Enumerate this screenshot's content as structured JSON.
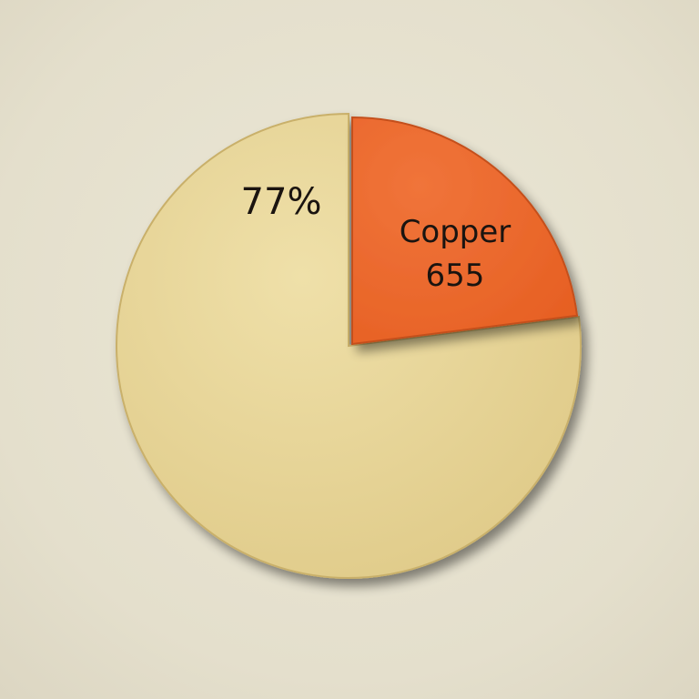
{
  "chart_data": {
    "type": "pie",
    "title": "",
    "start_angle_deg": 0,
    "slices": [
      {
        "label": "",
        "value_label": "77%",
        "percent": 77,
        "color": "#e6d396",
        "exploded": false
      },
      {
        "label": "Copper",
        "value_label": "655",
        "percent": 23,
        "color": "#ec6a2d",
        "exploded": true
      }
    ],
    "legend": "none"
  }
}
